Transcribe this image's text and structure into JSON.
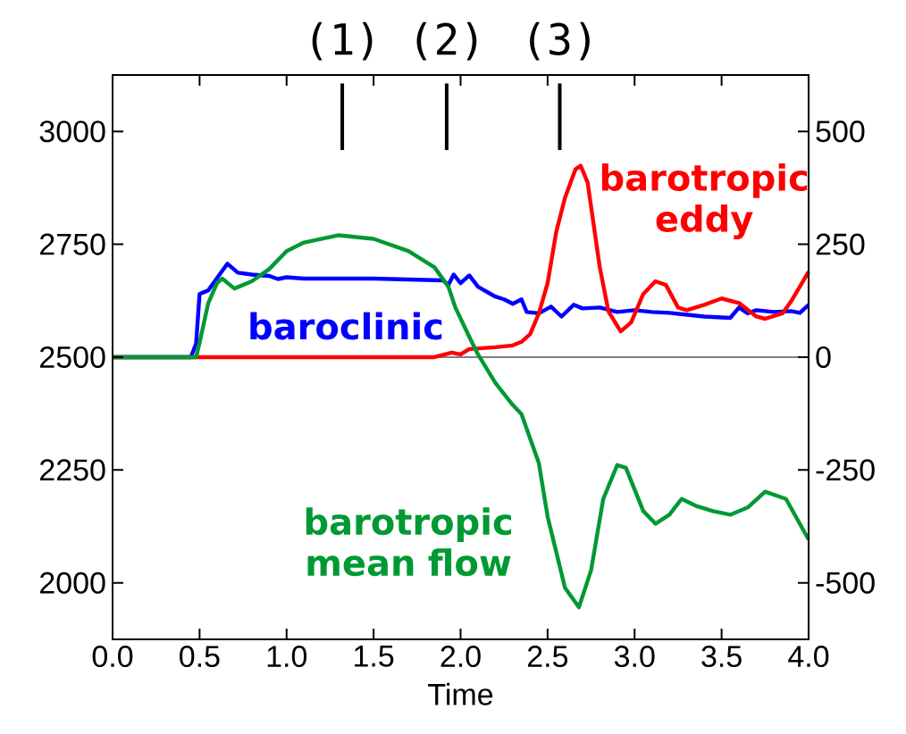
{
  "chart_data": {
    "type": "line",
    "xlabel": "Time",
    "xlim": [
      0,
      4
    ],
    "xticks": [
      {
        "value": 0,
        "label": "0.0"
      },
      {
        "value": 0.5,
        "label": "0.5"
      },
      {
        "value": 1,
        "label": "1.0"
      },
      {
        "value": 1.5,
        "label": "1.5"
      },
      {
        "value": 2,
        "label": "2.0"
      },
      {
        "value": 2.5,
        "label": "2.5"
      },
      {
        "value": 3,
        "label": "3.0"
      },
      {
        "value": 3.5,
        "label": "3.5"
      },
      {
        "value": 4,
        "label": "4.0"
      }
    ],
    "ylim": [
      1875,
      3125
    ],
    "yticks": [
      2000,
      2250,
      2500,
      2750,
      3000
    ],
    "y2lim": [
      -625,
      625
    ],
    "y2ticks": [
      -500,
      -250,
      0,
      250,
      500
    ],
    "ref_lines": [
      {
        "axis": "y",
        "value": 2500,
        "color": "#000000"
      },
      {
        "axis": "x",
        "value": 1.32,
        "label": "(1)",
        "color": "#000000"
      },
      {
        "axis": "x",
        "value": 1.92,
        "label": "(2)",
        "color": "#000000"
      },
      {
        "axis": "x",
        "value": 2.57,
        "label": "(3)",
        "color": "#000000"
      }
    ],
    "series": [
      {
        "name": "baroclinic",
        "color": "#0000ff",
        "x": [
          0,
          0.45,
          0.48,
          0.5,
          0.55,
          0.6,
          0.66,
          0.72,
          0.8,
          0.9,
          0.95,
          1.0,
          1.1,
          1.5,
          1.9,
          1.93,
          1.96,
          2.0,
          2.05,
          2.1,
          2.2,
          2.25,
          2.3,
          2.35,
          2.38,
          2.45,
          2.52,
          2.58,
          2.65,
          2.7,
          2.8,
          2.9,
          3.0,
          3.1,
          3.2,
          3.4,
          3.55,
          3.6,
          3.65,
          3.7,
          3.8,
          3.9,
          3.95,
          4.0
        ],
        "values": [
          2500,
          2500,
          2530,
          2640,
          2648,
          2675,
          2707,
          2687,
          2683,
          2680,
          2673,
          2677,
          2674,
          2674,
          2670,
          2660,
          2683,
          2664,
          2681,
          2656,
          2634,
          2628,
          2618,
          2628,
          2600,
          2597,
          2612,
          2590,
          2616,
          2608,
          2610,
          2600,
          2604,
          2600,
          2598,
          2590,
          2587,
          2610,
          2597,
          2604,
          2600,
          2602,
          2598,
          2616
        ]
      },
      {
        "name": "barotropic eddy",
        "color": "#ff0000",
        "x": [
          0,
          1.85,
          1.95,
          2.0,
          2.05,
          2.2,
          2.3,
          2.35,
          2.4,
          2.45,
          2.5,
          2.55,
          2.6,
          2.66,
          2.69,
          2.73,
          2.8,
          2.85,
          2.92,
          2.98,
          3.05,
          3.12,
          3.18,
          3.25,
          3.3,
          3.4,
          3.5,
          3.6,
          3.7,
          3.75,
          3.85,
          3.9,
          4.0
        ],
        "values": [
          2500,
          2500,
          2510,
          2506,
          2518,
          2522,
          2526,
          2534,
          2551,
          2597,
          2664,
          2778,
          2853,
          2916,
          2924,
          2887,
          2699,
          2601,
          2557,
          2577,
          2640,
          2668,
          2660,
          2610,
          2604,
          2616,
          2630,
          2620,
          2590,
          2585,
          2597,
          2624,
          2689
        ]
      },
      {
        "name": "barotropic mean flow",
        "color": "#009933",
        "x": [
          0,
          0.48,
          0.5,
          0.55,
          0.6,
          0.63,
          0.7,
          0.8,
          0.9,
          1.0,
          1.1,
          1.3,
          1.5,
          1.7,
          1.85,
          1.93,
          1.97,
          2.05,
          2.1,
          2.2,
          2.3,
          2.35,
          2.45,
          2.5,
          2.55,
          2.6,
          2.68,
          2.75,
          2.82,
          2.9,
          2.95,
          3.05,
          3.12,
          3.2,
          3.27,
          3.35,
          3.45,
          3.55,
          3.65,
          3.75,
          3.87,
          4.0
        ],
        "values": [
          2500,
          2500,
          2532,
          2620,
          2664,
          2674,
          2652,
          2668,
          2695,
          2735,
          2754,
          2770,
          2762,
          2735,
          2699,
          2656,
          2610,
          2545,
          2506,
          2443,
          2394,
          2374,
          2265,
          2147,
          2068,
          1989,
          1946,
          2028,
          2186,
          2261,
          2255,
          2159,
          2131,
          2151,
          2186,
          2171,
          2159,
          2151,
          2167,
          2202,
          2186,
          2096
        ]
      }
    ]
  }
}
